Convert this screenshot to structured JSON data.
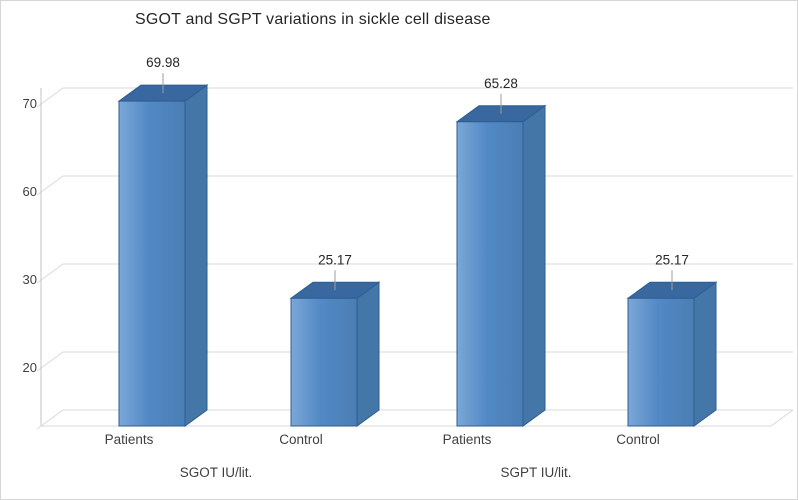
{
  "title": "SGOT and SGPT variations in sickle cell disease",
  "colors": {
    "bar_front": "#5289C5",
    "bar_top": "#38689F",
    "bar_side": "#4476A8",
    "gridline": "#D9D9D9",
    "text": "#3F3F3F"
  },
  "chart_data": {
    "type": "bar",
    "style": "3d",
    "title": "SGOT and SGPT variations in sickle cell disease",
    "grid": true,
    "legend": "none",
    "yaxis": {
      "tick_labels": [
        "70",
        "60",
        "30",
        "20"
      ]
    },
    "groups": [
      {
        "label": "SGOT IU/lit.",
        "categories": [
          "Patients",
          "Control"
        ],
        "values": [
          69.98,
          25.17
        ]
      },
      {
        "label": "SGPT IU/lit.",
        "categories": [
          "Patients",
          "Control"
        ],
        "values": [
          65.28,
          25.17
        ]
      }
    ],
    "bars": [
      {
        "group": "SGOT IU/lit.",
        "category": "Patients",
        "value": 69.98,
        "label": "69.98"
      },
      {
        "group": "SGOT IU/lit.",
        "category": "Control",
        "value": 25.17,
        "label": "25.17"
      },
      {
        "group": "SGPT IU/lit.",
        "category": "Patients",
        "value": 65.28,
        "label": "65.28"
      },
      {
        "group": "SGPT IU/lit.",
        "category": "Control",
        "value": 25.17,
        "label": "25.17"
      }
    ]
  }
}
